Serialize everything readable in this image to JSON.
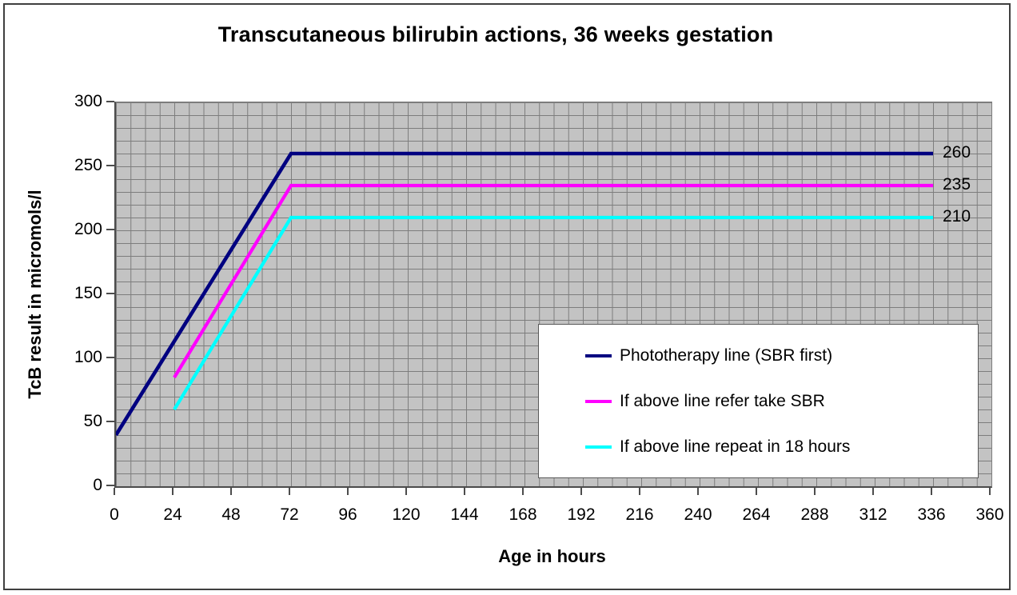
{
  "figure": {
    "title": "Transcutaneous bilirubin actions, 36 weeks gestation"
  },
  "chart_data": {
    "type": "line",
    "title": "Transcutaneous bilirubin actions, 36 weeks gestation",
    "xlabel": "Age in hours",
    "ylabel": "TcB result in micromols/l",
    "xlim": [
      0,
      360
    ],
    "ylim": [
      0,
      300
    ],
    "x_ticks": [
      0,
      24,
      48,
      72,
      96,
      120,
      144,
      168,
      192,
      216,
      240,
      264,
      288,
      312,
      336,
      360
    ],
    "y_ticks": [
      0,
      50,
      100,
      150,
      200,
      250,
      300
    ],
    "x_minor_grid_step": 6,
    "y_minor_grid_step": 10,
    "grid": "on",
    "plot_background_color": "#c3c3c3",
    "grid_color": "#7d7d7d",
    "legend_position": "inside-bottom-right",
    "series": [
      {
        "name": "Phototherapy line (SBR first)",
        "color": "#000080",
        "stroke_width": 4.6,
        "points": [
          [
            0,
            40
          ],
          [
            72,
            260
          ],
          [
            336,
            260
          ]
        ],
        "end_label": "260"
      },
      {
        "name": "If above line refer take SBR",
        "color": "#ff00ff",
        "stroke_width": 4.2,
        "points": [
          [
            24,
            85
          ],
          [
            72,
            235
          ],
          [
            336,
            235
          ]
        ],
        "end_label": "235"
      },
      {
        "name": "If above line repeat in 18 hours",
        "color": "#00ffff",
        "stroke_width": 4.2,
        "points": [
          [
            24,
            60
          ],
          [
            72,
            210
          ],
          [
            336,
            210
          ]
        ],
        "end_label": "210"
      }
    ]
  }
}
